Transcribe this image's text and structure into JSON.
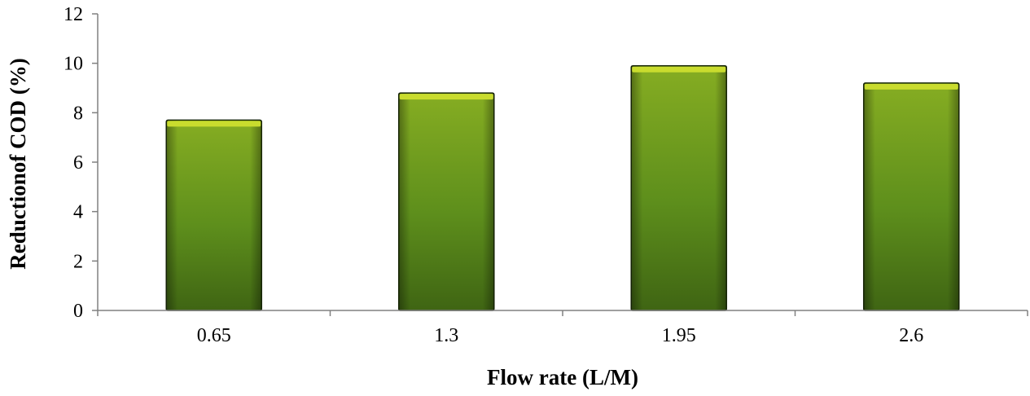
{
  "chart_data": {
    "type": "bar",
    "title": "",
    "xlabel": "Flow rate (L/M)",
    "ylabel": "Reductionof COD (%)",
    "categories": [
      "0.65",
      "1.3",
      "1.95",
      "2.6"
    ],
    "values": [
      7.7,
      8.8,
      9.9,
      9.2
    ],
    "ylim": [
      0,
      12
    ],
    "yticks": [
      "0",
      "2",
      "4",
      "6",
      "8",
      "10",
      "12"
    ],
    "grid": false,
    "legend": "none",
    "colors": {
      "bar_top": "#c9dc2e",
      "bar_light": "#86ad22",
      "bar_mid": "#5e8f1c",
      "bar_dark": "#3f6513",
      "bar_edge": "#1a2a08",
      "axis": "#808080"
    }
  }
}
